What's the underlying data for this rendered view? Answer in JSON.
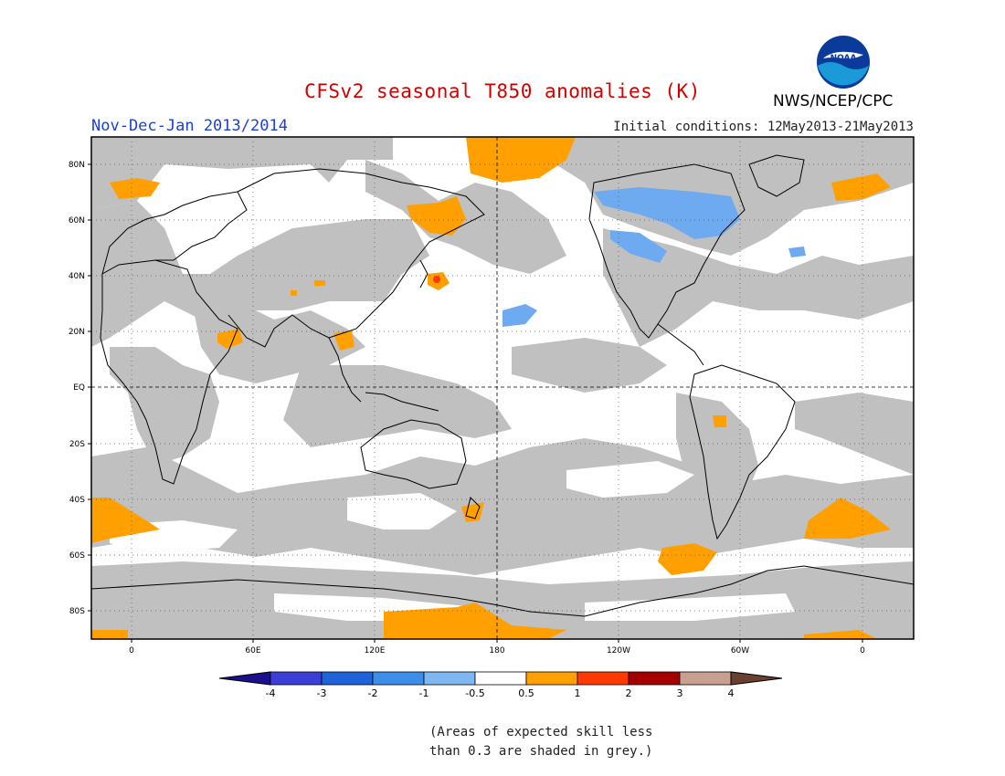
{
  "title": "CFSv2 seasonal T850 anomalies (K)",
  "period": "Nov-Dec-Jan 2013/2014",
  "initial_conditions": "Initial conditions: 12May2013-21May2013",
  "agency": "NWS/NCEP/CPC",
  "logo_text": "NOAA",
  "lat_labels": [
    "80N",
    "60N",
    "40N",
    "20N",
    "EQ",
    "20S",
    "40S",
    "60S",
    "80S"
  ],
  "lon_labels": [
    "0",
    "60E",
    "120E",
    "180",
    "120W",
    "60W",
    "0"
  ],
  "colorbar": {
    "labels": [
      "-4",
      "-3",
      "-2",
      "-1",
      "-0.5",
      "0.5",
      "1",
      "2",
      "3",
      "4"
    ],
    "colors": [
      "#1b0f8c",
      "#3b3fd6",
      "#1f63d8",
      "#3d8ee8",
      "#7fb7f0",
      "#ffffff",
      "#ffa000",
      "#ff3a00",
      "#a40000",
      "#c8a090",
      "#6a4030"
    ]
  },
  "colors": {
    "skill_grey": "#c0c0c0",
    "warm": "#ffa000",
    "cool": "#6eaaf0",
    "hot_spot": "#ff3a00"
  },
  "note_line1": "(Areas of expected skill less",
  "note_line2": "than 0.3 are shaded in grey.)"
}
